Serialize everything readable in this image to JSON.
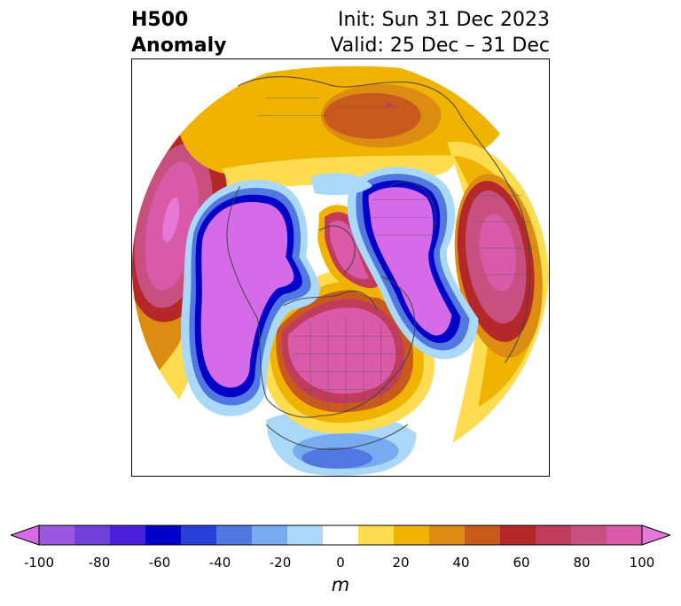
{
  "title": {
    "line1": "H500",
    "line2": "Anomaly"
  },
  "subtitle": {
    "init": "Init: Sun 31 Dec 2023",
    "valid": "Valid: 25 Dec – 31 Dec"
  },
  "colorbar": {
    "unit": "m",
    "ticks": [
      "-100",
      "-80",
      "-60",
      "-40",
      "-20",
      "0",
      "20",
      "40",
      "60",
      "80",
      "100"
    ],
    "colors": [
      "#d56be8",
      "#9c57e0",
      "#7040d8",
      "#4a20d8",
      "#0000c8",
      "#2840d8",
      "#5078e0",
      "#78aaf0",
      "#aad8f8",
      "#ffffff",
      "#ffdc50",
      "#f0b400",
      "#dc8c10",
      "#c85a1e",
      "#b4282a",
      "#c03c5a",
      "#c85080",
      "#d85aa8",
      "#e678d8"
    ]
  },
  "map_data": {
    "projection": "north polar stereographic",
    "variable": "500 hPa geopotential height anomaly",
    "features": [
      {
        "sign": "negative",
        "level": -100,
        "region": "Eastern Asia / Siberia"
      },
      {
        "sign": "negative",
        "level": -100,
        "region": "Arctic Ocean / Greenland"
      },
      {
        "sign": "negative",
        "level": -100,
        "region": "Northeastern Asia to North Pacific"
      },
      {
        "sign": "positive",
        "level": 100,
        "region": "Canada / Central North America"
      },
      {
        "sign": "positive",
        "level": 100,
        "region": "North Atlantic / Europe"
      },
      {
        "sign": "positive",
        "level": 80,
        "region": "North Pacific"
      },
      {
        "sign": "positive",
        "level": 40,
        "region": "Northern Africa / Arabia"
      },
      {
        "sign": "negative",
        "level": -40,
        "region": "Southern United States / Gulf of Mexico"
      }
    ]
  }
}
